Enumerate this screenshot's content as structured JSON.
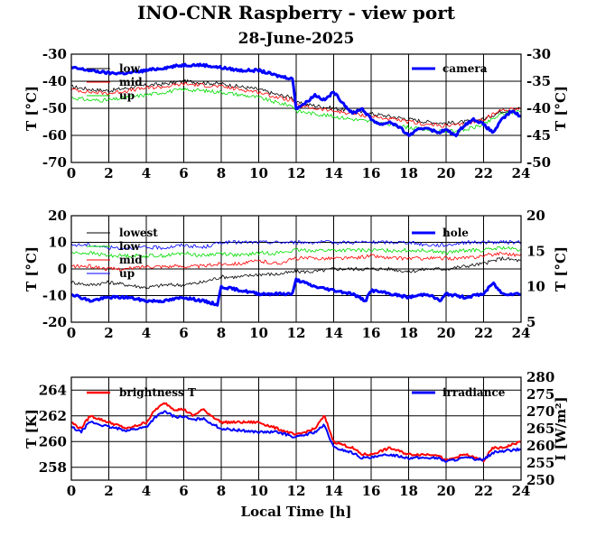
{
  "title": "INO-CNR Raspberry - view port",
  "subtitle": "28-June-2025",
  "xlabel": "Local Time [h]",
  "chart_data": [
    {
      "type": "line",
      "x_ticks": [
        "0",
        "2",
        "4",
        "6",
        "8",
        "10",
        "12",
        "14",
        "16",
        "18",
        "20",
        "22",
        "24"
      ],
      "xlim": [
        0,
        24
      ],
      "left_axis": {
        "label": "T [°C]",
        "lim": [
          -70,
          -30
        ],
        "ticks": [
          "-70",
          "-60",
          "-50",
          "-40",
          "-30"
        ]
      },
      "right_axis": {
        "label": "T [°C]",
        "lim": [
          -50,
          -30
        ],
        "ticks": [
          "-50",
          "-45",
          "-40",
          "-35",
          "-30"
        ]
      },
      "series": [
        {
          "name": "low",
          "axis": "left",
          "color": "#000000",
          "width": 0.8,
          "x": [
            0,
            1,
            2,
            3,
            4,
            5,
            6,
            7,
            8,
            9,
            10,
            11,
            11.8,
            12,
            13,
            14,
            15,
            16,
            17,
            18,
            19,
            20,
            21,
            22,
            23,
            24
          ],
          "y": [
            -42,
            -43,
            -43.5,
            -42.5,
            -41.5,
            -41,
            -40,
            -40.5,
            -41,
            -42,
            -43,
            -45,
            -46,
            -48,
            -49,
            -50,
            -51,
            -52,
            -53,
            -54,
            -55,
            -55.5,
            -55,
            -54,
            -51,
            -50
          ]
        },
        {
          "name": "mid",
          "axis": "left",
          "color": "#ff0000",
          "width": 0.8,
          "x": [
            0,
            1,
            2,
            3,
            4,
            5,
            6,
            7,
            8,
            9,
            10,
            11,
            11.8,
            12,
            13,
            14,
            15,
            16,
            17,
            18,
            19,
            20,
            21,
            22,
            23,
            24
          ],
          "y": [
            -43,
            -44,
            -44.5,
            -43.5,
            -42.5,
            -42,
            -41,
            -41.5,
            -42,
            -43,
            -44,
            -46,
            -47,
            -49,
            -50,
            -51,
            -52,
            -53,
            -54,
            -55,
            -56,
            -56.5,
            -56,
            -54,
            -50.5,
            -50
          ]
        },
        {
          "name": "up",
          "axis": "left",
          "color": "#00dd00",
          "width": 0.8,
          "x": [
            0,
            1,
            2,
            3,
            4,
            5,
            6,
            7,
            8,
            9,
            10,
            11,
            11.8,
            12,
            13,
            14,
            15,
            16,
            17,
            18,
            19,
            20,
            21,
            22,
            23,
            24
          ],
          "y": [
            -46,
            -47,
            -47,
            -46,
            -45,
            -44,
            -43,
            -43.5,
            -44,
            -45,
            -46,
            -48,
            -49,
            -51,
            -52,
            -53,
            -54,
            -55,
            -56,
            -57,
            -58,
            -58.5,
            -58,
            -56,
            -52,
            -51
          ]
        },
        {
          "name": "camera",
          "axis": "right",
          "color": "#0000ff",
          "width": 3,
          "x": [
            0,
            1,
            2,
            3,
            4,
            5,
            6,
            7,
            8,
            9,
            10,
            11,
            11.8,
            12,
            12.5,
            13,
            13.5,
            14,
            14.5,
            15,
            15.5,
            16,
            16.5,
            17,
            17.5,
            18,
            18.5,
            19,
            19.5,
            20,
            20.5,
            21,
            21.5,
            22,
            22.5,
            23,
            23.5,
            24
          ],
          "y": [
            -32.5,
            -33,
            -33.5,
            -33.5,
            -33,
            -32.5,
            -32,
            -32,
            -32.5,
            -33,
            -33,
            -34,
            -34.5,
            -40,
            -39,
            -37.5,
            -38.5,
            -37,
            -39,
            -41,
            -40,
            -42,
            -43,
            -42.5,
            -43.5,
            -45,
            -44,
            -43.5,
            -44.5,
            -44,
            -45,
            -43,
            -42,
            -43,
            -44.5,
            -42,
            -40.5,
            -41.5
          ]
        }
      ]
    },
    {
      "type": "line",
      "x_ticks": [
        "0",
        "2",
        "4",
        "6",
        "8",
        "10",
        "12",
        "14",
        "16",
        "18",
        "20",
        "22",
        "24"
      ],
      "xlim": [
        0,
        24
      ],
      "left_axis": {
        "label": "T [°C]",
        "lim": [
          -20,
          20
        ],
        "ticks": [
          "-20",
          "-10",
          "0",
          "10",
          "20"
        ]
      },
      "right_axis": {
        "label": "T [°C]",
        "lim": [
          5,
          20
        ],
        "ticks": [
          "5",
          "10",
          "15",
          "20"
        ]
      },
      "series": [
        {
          "name": "lowest",
          "axis": "left",
          "color": "#000000",
          "width": 0.8,
          "x": [
            0,
            1,
            2,
            3,
            4,
            5,
            6,
            7,
            8,
            9,
            10,
            11,
            12,
            13,
            14,
            15,
            16,
            17,
            18,
            19,
            20,
            21,
            22,
            23,
            24
          ],
          "y": [
            -5,
            -6,
            -5,
            -6,
            -7,
            -6,
            -6,
            -5,
            -3,
            -3,
            -2,
            -2,
            -1,
            -1,
            0,
            0,
            0,
            0,
            -1,
            0,
            0,
            1,
            2,
            4,
            3
          ]
        },
        {
          "name": "low",
          "axis": "left",
          "color": "#00dd00",
          "width": 0.8,
          "x": [
            0,
            1,
            2,
            3,
            4,
            5,
            6,
            7,
            8,
            9,
            10,
            11,
            12,
            13,
            14,
            15,
            16,
            17,
            18,
            19,
            20,
            21,
            22,
            23,
            24
          ],
          "y": [
            6,
            6,
            5,
            5,
            5,
            5,
            6,
            5,
            6,
            5,
            6,
            6,
            7,
            7,
            7,
            7,
            7,
            7,
            7,
            7,
            6,
            7,
            7,
            8,
            7
          ]
        },
        {
          "name": "mid",
          "axis": "left",
          "color": "#ff0000",
          "width": 0.8,
          "x": [
            0,
            1,
            2,
            3,
            4,
            5,
            6,
            7,
            8,
            9,
            10,
            11,
            12,
            13,
            14,
            15,
            16,
            17,
            18,
            19,
            20,
            21,
            22,
            23,
            24
          ],
          "y": [
            1,
            1,
            0,
            0,
            1,
            1,
            1,
            1,
            2,
            2,
            3,
            2,
            4,
            4,
            4,
            4,
            5,
            4,
            4,
            4,
            4,
            4,
            5,
            6,
            5
          ]
        },
        {
          "name": "up",
          "axis": "left",
          "color": "#0000ff",
          "width": 0.8,
          "x": [
            0,
            1,
            2,
            3,
            4,
            5,
            6,
            7,
            8,
            9,
            10,
            11,
            12,
            13,
            14,
            15,
            16,
            17,
            18,
            19,
            20,
            21,
            22,
            23,
            24
          ],
          "y": [
            9,
            9,
            8,
            8,
            8,
            8,
            9,
            8,
            10,
            10,
            10,
            10,
            10,
            10,
            10,
            10,
            10,
            10,
            10,
            9,
            9,
            10,
            10,
            10,
            10
          ]
        },
        {
          "name": "hole",
          "axis": "right",
          "color": "#0000ff",
          "width": 3,
          "x": [
            0,
            1,
            2,
            3,
            4,
            5,
            6,
            7,
            7.8,
            8,
            9,
            10,
            11,
            11.8,
            12,
            13,
            14,
            15,
            15.7,
            16,
            17,
            18,
            19,
            19.7,
            20,
            21,
            22,
            22.5,
            23,
            24
          ],
          "y": [
            9,
            8,
            8.5,
            8.5,
            8,
            8,
            8.5,
            8,
            7.5,
            10,
            9.5,
            9,
            9,
            9,
            11,
            10,
            9.5,
            9,
            8,
            9.5,
            9,
            8.5,
            9,
            8,
            9,
            8.5,
            9,
            10.5,
            9,
            9
          ]
        }
      ]
    },
    {
      "type": "line",
      "x_ticks": [
        "0",
        "2",
        "4",
        "6",
        "8",
        "10",
        "12",
        "14",
        "16",
        "18",
        "20",
        "22",
        "24"
      ],
      "xlim": [
        0,
        24
      ],
      "left_axis": {
        "label": "T [K]",
        "lim": [
          257,
          265
        ],
        "ticks": [
          "258",
          "260",
          "262",
          "264"
        ]
      },
      "right_axis": {
        "label": "I [W/m²]",
        "lim": [
          250,
          280
        ],
        "ticks": [
          "250",
          "255",
          "260",
          "265",
          "270",
          "275",
          "280"
        ]
      },
      "series": [
        {
          "name": "brightness T",
          "axis": "left",
          "color": "#ff0000",
          "width": 2,
          "x": [
            0,
            0.5,
            1,
            2,
            3,
            4,
            4.5,
            5,
            5.5,
            6,
            6.5,
            7,
            8,
            9,
            10,
            11,
            12,
            13,
            13.5,
            14,
            15,
            15.5,
            16,
            17,
            18,
            19,
            19.5,
            20,
            21,
            22,
            22.5,
            23,
            24
          ],
          "y": [
            261.5,
            261,
            262,
            261.5,
            261,
            261.5,
            262.5,
            263,
            262.5,
            262.5,
            262,
            262.5,
            261.5,
            261.5,
            261.5,
            261,
            260.5,
            261,
            262,
            260,
            259.5,
            259,
            259,
            259.5,
            259,
            259,
            259,
            258.5,
            259,
            258.5,
            259.5,
            259.5,
            260
          ]
        },
        {
          "name": "irradiance",
          "axis": "right",
          "color": "#0000ff",
          "width": 2,
          "x": [
            0,
            0.5,
            1,
            2,
            3,
            4,
            4.5,
            5,
            5.5,
            6,
            6.5,
            7,
            8,
            9,
            10,
            11,
            12,
            13,
            13.5,
            14,
            15,
            15.5,
            16,
            17,
            18,
            19,
            19.5,
            20,
            21,
            22,
            22.5,
            23,
            24
          ],
          "y": [
            265.5,
            264,
            267,
            265.5,
            264.5,
            265.5,
            268.5,
            270,
            268.5,
            268.5,
            267.5,
            268,
            265,
            264.5,
            264,
            264,
            262.5,
            264,
            266,
            259.5,
            258,
            256.5,
            256.5,
            257.5,
            256.5,
            256.5,
            256.5,
            255.5,
            256.5,
            256,
            258,
            258.5,
            259
          ]
        }
      ]
    }
  ]
}
